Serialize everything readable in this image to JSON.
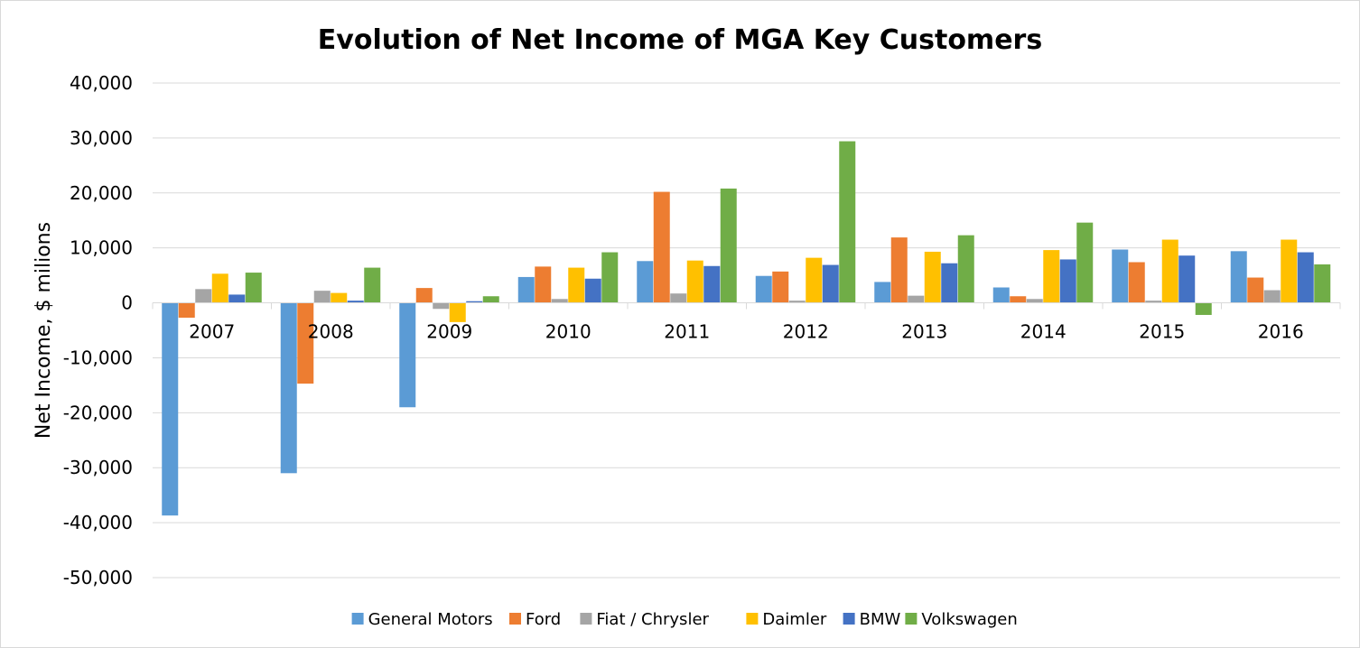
{
  "chart_data": {
    "type": "bar",
    "title": "Evolution of Net Income of MGA Key Customers",
    "xlabel": "",
    "ylabel": "Net Income, $ milions",
    "ylim": [
      -50000,
      40000
    ],
    "yticks": [
      40000,
      30000,
      20000,
      10000,
      0,
      -10000,
      -20000,
      -30000,
      -40000,
      -50000
    ],
    "ytick_labels": [
      "40,000",
      "30,000",
      "20,000",
      "10,000",
      "0",
      "-10,000",
      "-20,000",
      "-30,000",
      "-40,000",
      "-50,000"
    ],
    "grid": true,
    "legend_position": "bottom",
    "categories": [
      "2007",
      "2008",
      "2009",
      "2010",
      "2011",
      "2012",
      "2013",
      "2014",
      "2015",
      "2016"
    ],
    "series": [
      {
        "name": "General Motors",
        "color": "#5b9bd5",
        "values": [
          -38700,
          -31000,
          -19000,
          4700,
          7600,
          4900,
          3800,
          2800,
          9700,
          9400
        ]
      },
      {
        "name": "Ford",
        "color": "#ed7d31",
        "values": [
          -2700,
          -14700,
          2700,
          6600,
          20200,
          5700,
          11900,
          1200,
          7400,
          4600
        ]
      },
      {
        "name": "Fiat / Chrysler",
        "color": "#a5a5a5",
        "values": [
          2500,
          2200,
          -1100,
          700,
          1700,
          400,
          1300,
          700,
          400,
          2300
        ]
      },
      {
        "name": "Daimler",
        "color": "#ffc000",
        "values": [
          5300,
          1800,
          -3500,
          6400,
          7700,
          8200,
          9300,
          9600,
          11500,
          11500
        ]
      },
      {
        "name": "BMW",
        "color": "#4472c4",
        "values": [
          1500,
          400,
          300,
          4400,
          6700,
          6900,
          7200,
          7900,
          8600,
          9200
        ]
      },
      {
        "name": "Volkswagen",
        "color": "#70ad47",
        "values": [
          5500,
          6400,
          1200,
          9200,
          20800,
          29400,
          12300,
          14600,
          -2200,
          7000
        ]
      }
    ]
  }
}
